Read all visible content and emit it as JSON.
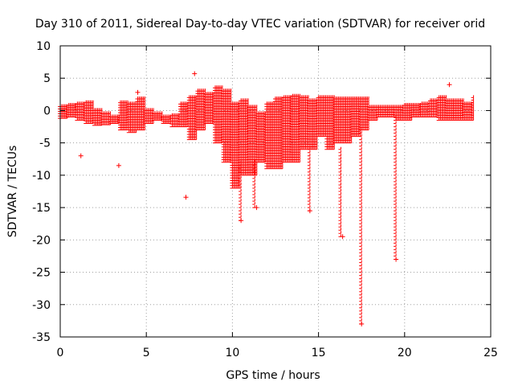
{
  "chart_data": {
    "type": "scatter",
    "title": "Day 310 of 2011, Sidereal Day-to-day VTEC variation (SDTVAR) for receiver orid",
    "xlabel": "GPS time / hours",
    "ylabel": "SDTVAR / TECUs",
    "xlim": [
      0,
      25
    ],
    "ylim": [
      -35,
      10
    ],
    "xticks": [
      0,
      5,
      10,
      15,
      20,
      25
    ],
    "yticks": [
      10,
      5,
      0,
      -5,
      -10,
      -15,
      -20,
      -25,
      -30,
      -35
    ],
    "grid": true,
    "marker": "+",
    "color": "#ff0000",
    "series": [
      {
        "name": "SDTVAR",
        "envelope_x": [
          0,
          0.5,
          1,
          1.5,
          2,
          2.5,
          3,
          3.5,
          4,
          4.5,
          5,
          5.5,
          6,
          6.5,
          7,
          7.5,
          8,
          8.5,
          9,
          9.5,
          10,
          10.5,
          11,
          11.5,
          12,
          12.5,
          13,
          13.5,
          14,
          14.5,
          15,
          15.5,
          16,
          16.5,
          17,
          17.5,
          18,
          18.5,
          19,
          19.5,
          20,
          20.5,
          21,
          21.5,
          22,
          22.5,
          23,
          23.5,
          24
        ],
        "envelope_low": [
          -1.2,
          -1,
          -1.5,
          -2,
          -2.3,
          -2.2,
          -2,
          -3,
          -3.4,
          -3,
          -2,
          -1.5,
          -2,
          -2.5,
          -2.5,
          -4.5,
          -3,
          -2,
          -5,
          -8,
          -12,
          -10,
          -10,
          -8,
          -9,
          -9,
          -8,
          -8,
          -6,
          -6,
          -4,
          -6,
          -5,
          -5,
          -4,
          -3,
          -1.5,
          -1,
          -1,
          -1.5,
          -1.5,
          -1,
          -1,
          -1,
          -1.5,
          -1.5,
          -1.5,
          -1.5,
          -1.5
        ],
        "envelope_high": [
          0.6,
          0.8,
          1,
          1.2,
          0,
          -0.5,
          -1,
          1.2,
          1,
          1.8,
          0,
          -0.5,
          -1,
          -0.8,
          1,
          2,
          3,
          2.5,
          3.5,
          3,
          1,
          1.5,
          0.5,
          -0.5,
          1,
          1.8,
          2,
          2.2,
          2,
          1.5,
          2,
          2,
          1.8,
          1.8,
          1.8,
          1.8,
          0.5,
          0.5,
          0.5,
          0.5,
          0.8,
          0.8,
          1,
          1.5,
          2,
          1.5,
          1.5,
          1,
          2
        ],
        "outliers": [
          {
            "x": 1.2,
            "y": -7
          },
          {
            "x": 3.4,
            "y": -8.5
          },
          {
            "x": 4.5,
            "y": 2.8
          },
          {
            "x": 7.3,
            "y": -13.4
          },
          {
            "x": 7.8,
            "y": 5.7
          },
          {
            "x": 10.5,
            "y": -17
          },
          {
            "x": 11.4,
            "y": -15
          },
          {
            "x": 14.5,
            "y": -15.5
          },
          {
            "x": 16.4,
            "y": -19.5
          },
          {
            "x": 17.5,
            "y": -33
          },
          {
            "x": 19.5,
            "y": -23
          },
          {
            "x": 22.6,
            "y": 4
          }
        ],
        "spikes": [
          {
            "x": 10.5,
            "y_top": -8,
            "y_bottom": -17
          },
          {
            "x": 11.3,
            "y_top": -8,
            "y_bottom": -15
          },
          {
            "x": 14.5,
            "y_top": -6,
            "y_bottom": -15.5
          },
          {
            "x": 16.3,
            "y_top": -6,
            "y_bottom": -19.5
          },
          {
            "x": 17.5,
            "y_top": -3,
            "y_bottom": -33
          },
          {
            "x": 19.5,
            "y_top": -1,
            "y_bottom": -23
          }
        ]
      }
    ]
  }
}
